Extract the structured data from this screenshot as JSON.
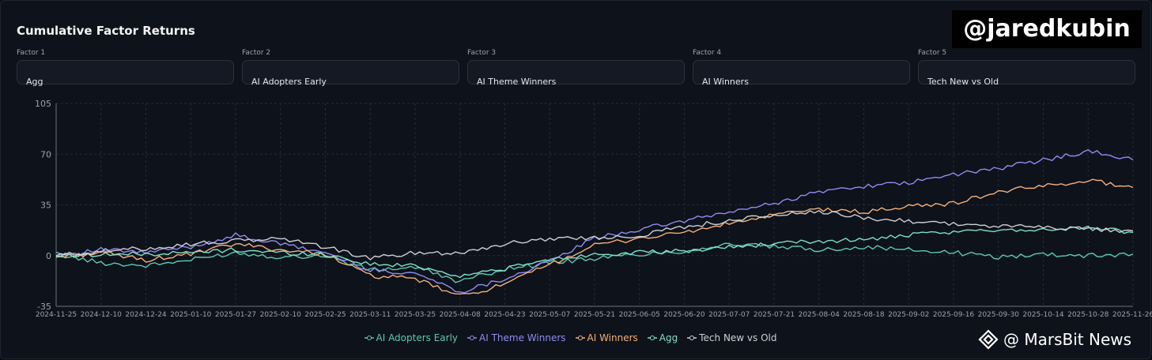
{
  "panel": {
    "title": "Cumulative Factor Returns",
    "watermark": "@jaredkubin",
    "brand_text": "@ MarsBit News",
    "download_icon": "download-icon"
  },
  "factors": [
    {
      "label": "Factor 1",
      "value": "Agg"
    },
    {
      "label": "Factor 2",
      "value": "AI Adopters Early"
    },
    {
      "label": "Factor 3",
      "value": "AI Theme Winners"
    },
    {
      "label": "Factor 4",
      "value": "AI Winners"
    },
    {
      "label": "Factor 5",
      "value": "Tech New vs Old"
    }
  ],
  "chart_data": {
    "type": "line",
    "title": "Cumulative Factor Returns",
    "xlabel": "",
    "ylabel": "",
    "ylim": [
      -35,
      105
    ],
    "yticks": [
      -35,
      0,
      35,
      70,
      105
    ],
    "grid": true,
    "legend_position": "bottom",
    "x": [
      "2024-11-25",
      "2024-12-10",
      "2024-12-24",
      "2025-01-10",
      "2025-01-27",
      "2025-02-10",
      "2025-02-25",
      "2025-03-11",
      "2025-03-25",
      "2025-04-08",
      "2025-04-23",
      "2025-05-07",
      "2025-05-21",
      "2025-06-05",
      "2025-06-20",
      "2025-07-07",
      "2025-07-21",
      "2025-08-04",
      "2025-08-18",
      "2025-09-02",
      "2025-09-16",
      "2025-09-30",
      "2025-10-14",
      "2025-10-28",
      "2025-11-26"
    ],
    "series": [
      {
        "name": "AI Adopters Early",
        "color": "#5ec8b0",
        "values": [
          1,
          -5,
          -7,
          -3,
          2,
          -1,
          0,
          -10,
          -8,
          -18,
          -9,
          -5,
          -2,
          1,
          3,
          8,
          6,
          4,
          6,
          4,
          2,
          -1,
          1,
          0,
          1
        ]
      },
      {
        "name": "AI Theme Winners",
        "color": "#8f8cf2",
        "values": [
          0,
          4,
          2,
          6,
          14,
          8,
          2,
          -10,
          -12,
          -25,
          -16,
          -4,
          12,
          18,
          24,
          30,
          36,
          44,
          48,
          50,
          56,
          60,
          66,
          72,
          66
        ]
      },
      {
        "name": "AI Winners",
        "color": "#f5b07a",
        "values": [
          -1,
          2,
          -3,
          1,
          8,
          4,
          1,
          -14,
          -16,
          -28,
          -20,
          -6,
          7,
          12,
          16,
          22,
          28,
          32,
          30,
          34,
          36,
          44,
          48,
          52,
          47
        ]
      },
      {
        "name": "Agg",
        "color": "#7ee0c7",
        "values": [
          0,
          1,
          1,
          2,
          4,
          2,
          1,
          -6,
          -7,
          -14,
          -9,
          -3,
          1,
          2,
          3,
          6,
          8,
          10,
          11,
          14,
          16,
          18,
          18,
          19,
          16
        ]
      },
      {
        "name": "Tech New vs Old",
        "color": "#cfcfd6",
        "values": [
          0,
          3,
          5,
          8,
          10,
          12,
          6,
          -2,
          2,
          2,
          8,
          12,
          12,
          14,
          20,
          24,
          28,
          30,
          26,
          24,
          22,
          20,
          20,
          18,
          17
        ]
      }
    ]
  }
}
